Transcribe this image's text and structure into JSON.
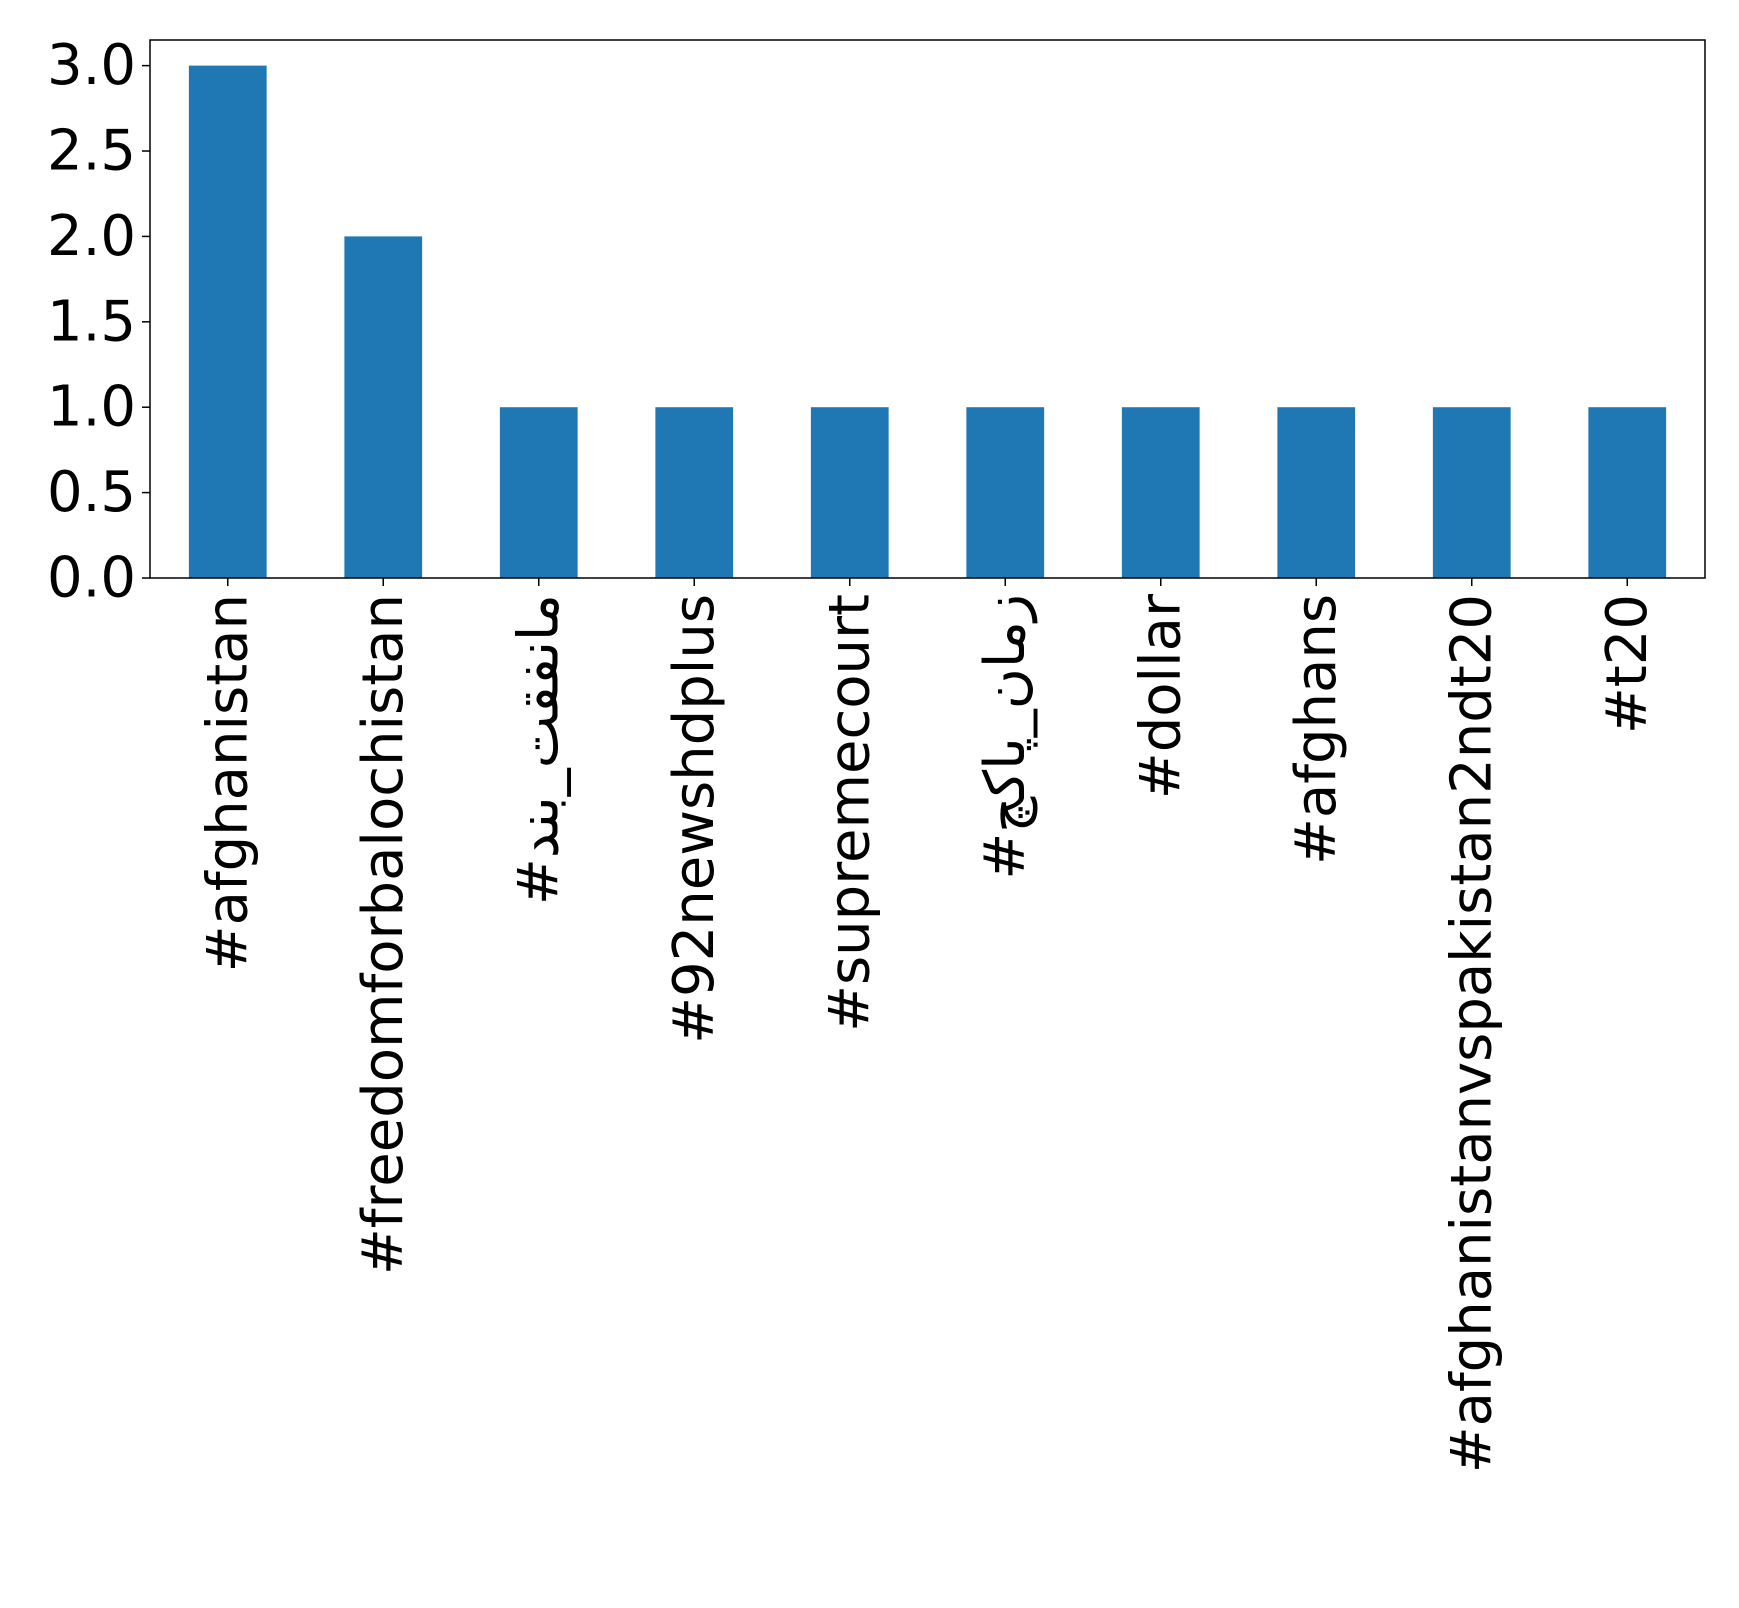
{
  "chart_data": {
    "type": "bar",
    "categories": [
      "#afghanistan",
      "#freedomforbalochistan",
      "#مانفقت_بند",
      "#92newshdplus",
      "#supremecourt",
      "#زمان_پاکچ",
      "#dollar",
      "#afghans",
      "#afghanistanvspakistan2ndt20",
      "#t20"
    ],
    "values": [
      3,
      2,
      1,
      1,
      1,
      1,
      1,
      1,
      1,
      1
    ],
    "yticks": [
      "0.0",
      "0.5",
      "1.0",
      "1.5",
      "2.0",
      "2.5",
      "3.0"
    ],
    "ylim": [
      0,
      3.15
    ],
    "grid": false,
    "legend": false,
    "colors": {
      "bar": "#1f77b4",
      "axis": "#000000"
    }
  }
}
